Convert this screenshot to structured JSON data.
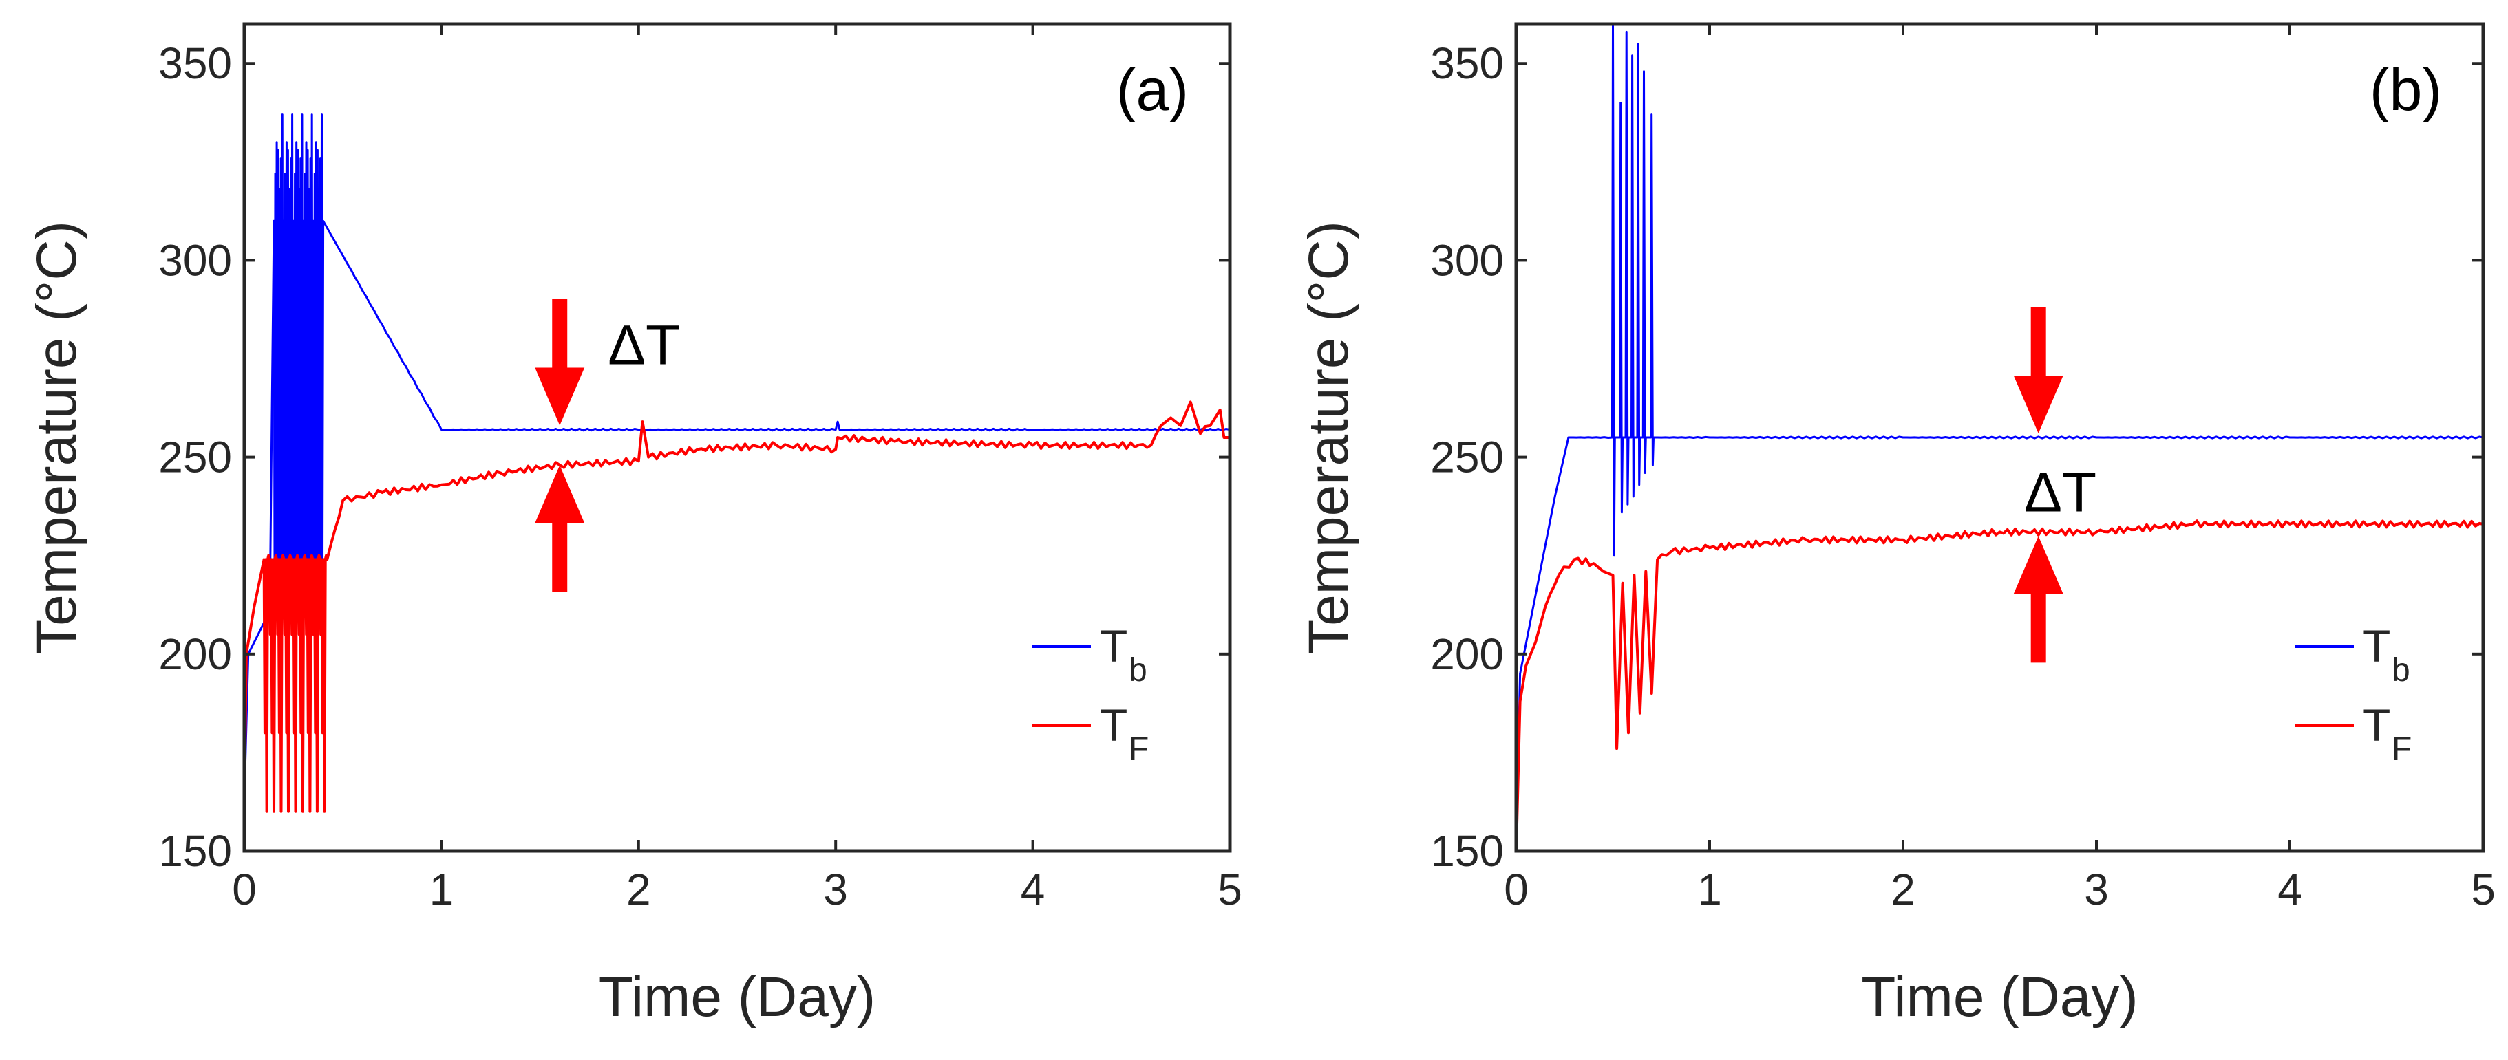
{
  "chart_data": [
    {
      "type": "line",
      "panel": "(a)",
      "xlabel": "Time (Day)",
      "ylabel": "Temperature (°C)",
      "xlim": [
        0,
        5
      ],
      "ylim": [
        150,
        360
      ],
      "xticks": [
        "0",
        "1",
        "2",
        "3",
        "4",
        "5"
      ],
      "yticks": [
        "150",
        "200",
        "250",
        "300",
        "350"
      ],
      "annotation": "ΔT",
      "annotation_x": 1.6,
      "legend": {
        "placement": "right",
        "entries": [
          {
            "base": "T",
            "sub": "b"
          },
          {
            "base": "T",
            "sub": "F"
          }
        ]
      },
      "series": [
        {
          "name": "Tb",
          "color": "#0000ff",
          "points": [
            [
              0,
              163
            ],
            [
              0.02,
              200
            ],
            [
              0.06,
              204
            ],
            [
              0.1,
              208
            ],
            [
              0.13,
              214
            ],
            [
              0.16,
              222
            ],
            [
              0.2,
              235
            ],
            [
              0.24,
              245
            ],
            [
              0.28,
              252
            ],
            [
              0.32,
              256
            ],
            [
              0.4,
              257
            ],
            [
              1,
              257
            ],
            [
              2,
              257
            ],
            [
              3,
              257
            ],
            [
              3.01,
              259
            ],
            [
              3.02,
              257
            ],
            [
              4,
              257
            ],
            [
              5,
              257
            ]
          ],
          "oscillation": {
            "start": 0.15,
            "end": 0.4,
            "low": 222,
            "high": [
              310,
              318,
              322,
              326,
              330,
              337,
              328
            ]
          }
        },
        {
          "name": "TF",
          "color": "#ff0000",
          "points": [
            [
              0,
              163
            ],
            [
              0.01,
              200
            ],
            [
              0.05,
              212
            ],
            [
              0.1,
              217
            ],
            [
              0.15,
              216
            ],
            [
              0.2,
              215
            ],
            [
              0.25,
              222
            ],
            [
              0.3,
              228
            ],
            [
              0.4,
              236
            ],
            [
              0.5,
              239
            ],
            [
              0.7,
              241
            ],
            [
              1,
              243
            ],
            [
              1.3,
              246
            ],
            [
              1.6,
              248
            ],
            [
              2,
              249
            ],
            [
              2.02,
              259
            ],
            [
              2.05,
              250
            ],
            [
              2.3,
              252
            ],
            [
              2.7,
              253
            ],
            [
              3,
              252
            ],
            [
              3.01,
              255
            ],
            [
              3.3,
              254
            ],
            [
              4,
              253
            ],
            [
              4.6,
              253
            ],
            [
              4.65,
              258
            ],
            [
              4.7,
              260
            ],
            [
              4.75,
              258
            ],
            [
              4.8,
              264
            ],
            [
              4.85,
              256
            ],
            [
              4.9,
              258
            ],
            [
              4.95,
              262
            ],
            [
              4.97,
              255
            ],
            [
              5,
              255
            ]
          ],
          "oscillation": {
            "start": 0.1,
            "end": 0.42,
            "low": [
              150,
              160,
              170,
              180,
              190,
              205,
              215,
              225
            ],
            "high": 224
          }
        }
      ]
    },
    {
      "type": "line",
      "panel": "(b)",
      "xlabel": "Time (Day)",
      "ylabel": "Temperature (°C)",
      "xlim": [
        0,
        5
      ],
      "ylim": [
        150,
        360
      ],
      "xticks": [
        "0",
        "1",
        "2",
        "3",
        "4",
        "5"
      ],
      "yticks": [
        "150",
        "200",
        "250",
        "300",
        "350"
      ],
      "annotation": "ΔT",
      "annotation_x": 2.7,
      "legend": {
        "placement": "right",
        "entries": [
          {
            "base": "T",
            "sub": "b"
          },
          {
            "base": "T",
            "sub": "F"
          }
        ]
      },
      "series": [
        {
          "name": "Tb",
          "color": "#0000ff",
          "points": [
            [
              0,
              150
            ],
            [
              0.02,
              195
            ],
            [
              0.06,
              205
            ],
            [
              0.12,
              220
            ],
            [
              0.2,
              240
            ],
            [
              0.27,
              255
            ],
            [
              0.5,
              255
            ],
            [
              1,
              255
            ],
            [
              2,
              255
            ],
            [
              3,
              255
            ],
            [
              4,
              255
            ],
            [
              5,
              255
            ]
          ],
          "spikes": [
            [
              0.5,
              360,
              225
            ],
            [
              0.54,
              340,
              236
            ],
            [
              0.57,
              358,
              238
            ],
            [
              0.6,
              352,
              240
            ],
            [
              0.63,
              355,
              243
            ],
            [
              0.66,
              348,
              246
            ],
            [
              0.7,
              337,
              248
            ]
          ]
        },
        {
          "name": "TF",
          "color": "#ff0000",
          "points": [
            [
              0,
              150
            ],
            [
              0.02,
              188
            ],
            [
              0.05,
              197
            ],
            [
              0.1,
              203
            ],
            [
              0.15,
              212
            ],
            [
              0.22,
              220
            ],
            [
              0.3,
              224
            ],
            [
              0.4,
              223
            ],
            [
              0.45,
              221
            ],
            [
              0.5,
              220
            ],
            [
              0.52,
              176
            ],
            [
              0.55,
              218
            ],
            [
              0.58,
              180
            ],
            [
              0.61,
              220
            ],
            [
              0.64,
              185
            ],
            [
              0.67,
              221
            ],
            [
              0.7,
              190
            ],
            [
              0.73,
              224
            ],
            [
              0.8,
              226
            ],
            [
              1,
              227
            ],
            [
              1.5,
              229
            ],
            [
              2,
              229
            ],
            [
              2.5,
              231
            ],
            [
              3,
              231
            ],
            [
              3.5,
              233
            ],
            [
              4,
              233
            ],
            [
              5,
              233
            ]
          ]
        }
      ]
    }
  ]
}
